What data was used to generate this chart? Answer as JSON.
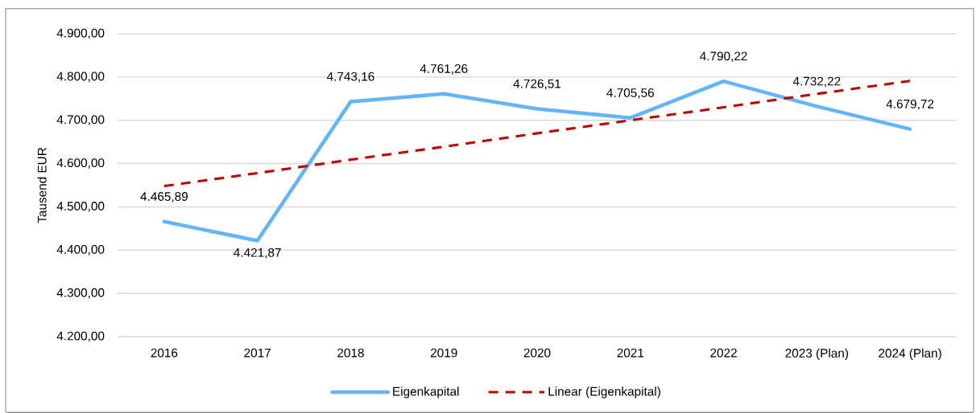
{
  "chart_data": {
    "type": "line",
    "ylabel": "Tausend EUR",
    "categories": [
      "2016",
      "2017",
      "2018",
      "2019",
      "2020",
      "2021",
      "2022",
      "2023 (Plan)",
      "2024 (Plan)"
    ],
    "series": [
      {
        "name": "Eigenkapital",
        "color": "#64b5f6",
        "line_style": "solid",
        "values": [
          4465.89,
          4421.87,
          4743.16,
          4761.26,
          4726.51,
          4705.56,
          4790.22,
          4732.22,
          4679.72
        ],
        "value_labels": [
          "4.465,89",
          "4.421,87",
          "4.743,16",
          "4.761,26",
          "4.726,51",
          "4.705,56",
          "4.790,22",
          "4.732,22",
          "4.679,72"
        ]
      },
      {
        "name": "Linear (Eigenkapital)",
        "type": "line",
        "color": "#c00000",
        "line_style": "dashed",
        "values": [
          4548,
          4578,
          4609,
          4639,
          4670,
          4700,
          4730,
          4761,
          4791
        ]
      }
    ],
    "ylim": [
      4200,
      4900
    ],
    "yticks": [
      {
        "value": 4200,
        "label": "4.200,00"
      },
      {
        "value": 4300,
        "label": "4.300,00"
      },
      {
        "value": 4400,
        "label": "4.400,00"
      },
      {
        "value": 4500,
        "label": "4.500,00"
      },
      {
        "value": 4600,
        "label": "4.600,00"
      },
      {
        "value": 4700,
        "label": "4.700,00"
      },
      {
        "value": 4800,
        "label": "4.800,00"
      },
      {
        "value": 4900,
        "label": "4.900,00"
      }
    ],
    "grid": "y",
    "legend": "bottom",
    "marker": "none"
  }
}
